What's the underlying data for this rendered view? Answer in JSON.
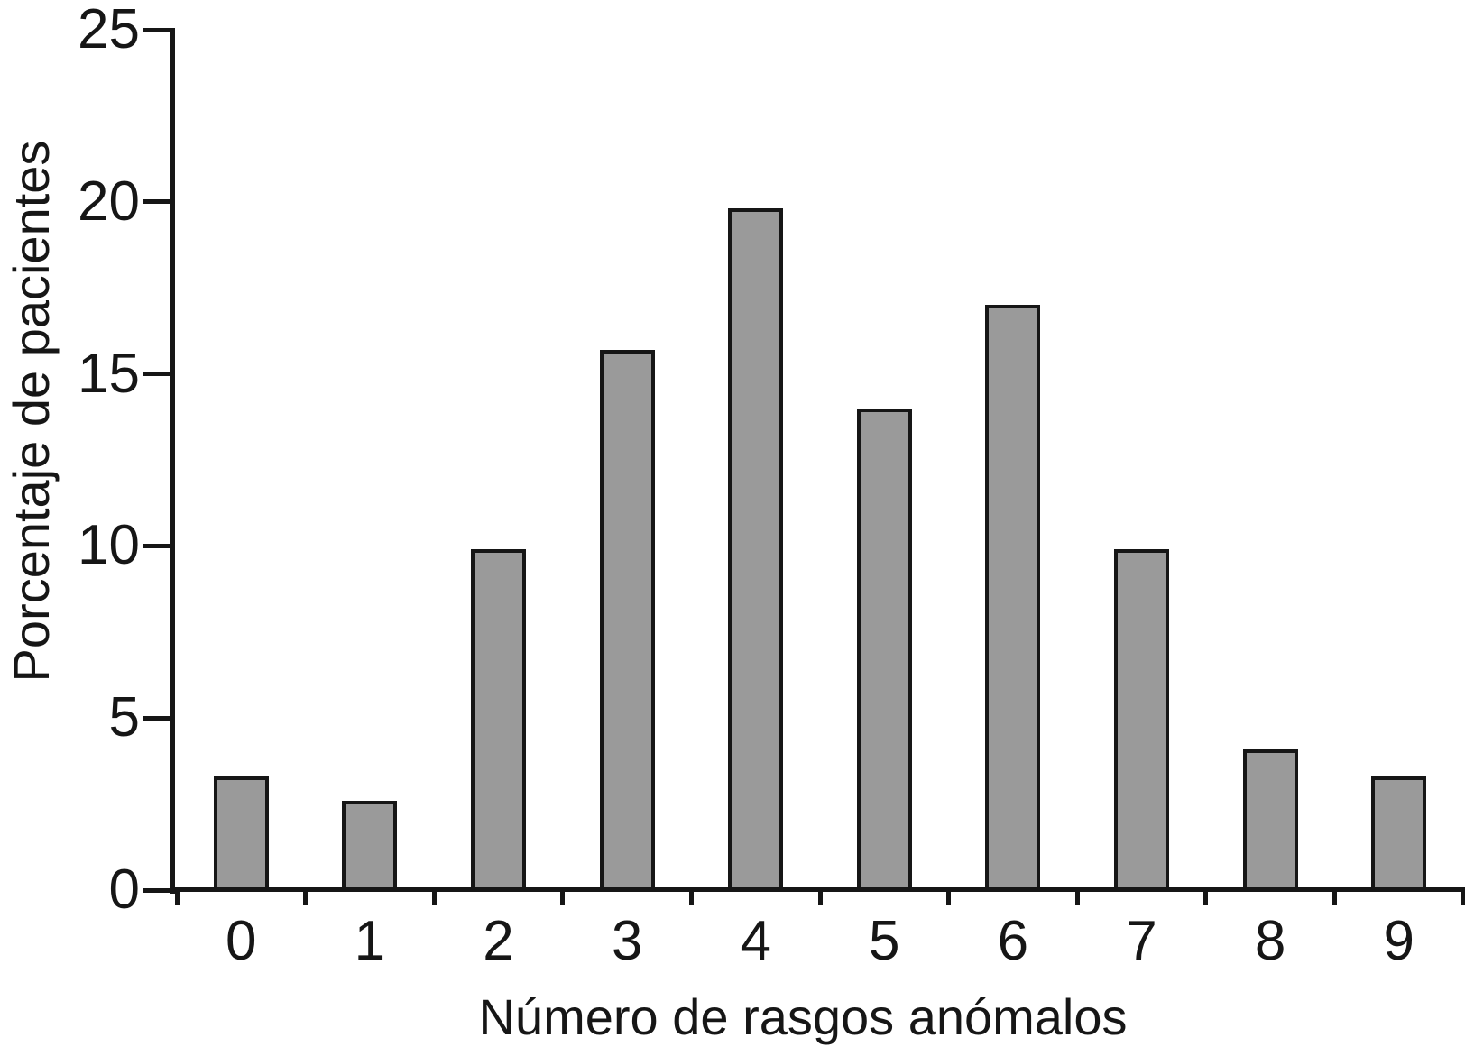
{
  "chart_data": {
    "type": "bar",
    "title": "",
    "xlabel": "Número de rasgos anómalos",
    "ylabel": "Porcentaje de pacientes",
    "categories": [
      "0",
      "1",
      "2",
      "3",
      "4",
      "5",
      "6",
      "7",
      "8",
      "9"
    ],
    "values": [
      3.3,
      2.6,
      9.9,
      15.7,
      19.8,
      14.0,
      17.0,
      9.9,
      4.1,
      3.3
    ],
    "ylim": [
      0,
      25
    ],
    "yticks": [
      0,
      5,
      10,
      15,
      20,
      25
    ],
    "grid": false,
    "legend": null,
    "bar_fill_color": "#9a9a9a",
    "bar_border_color": "#161616",
    "axis_color": "#161616",
    "text_color": "#161616",
    "background_color": "#ffffff"
  }
}
